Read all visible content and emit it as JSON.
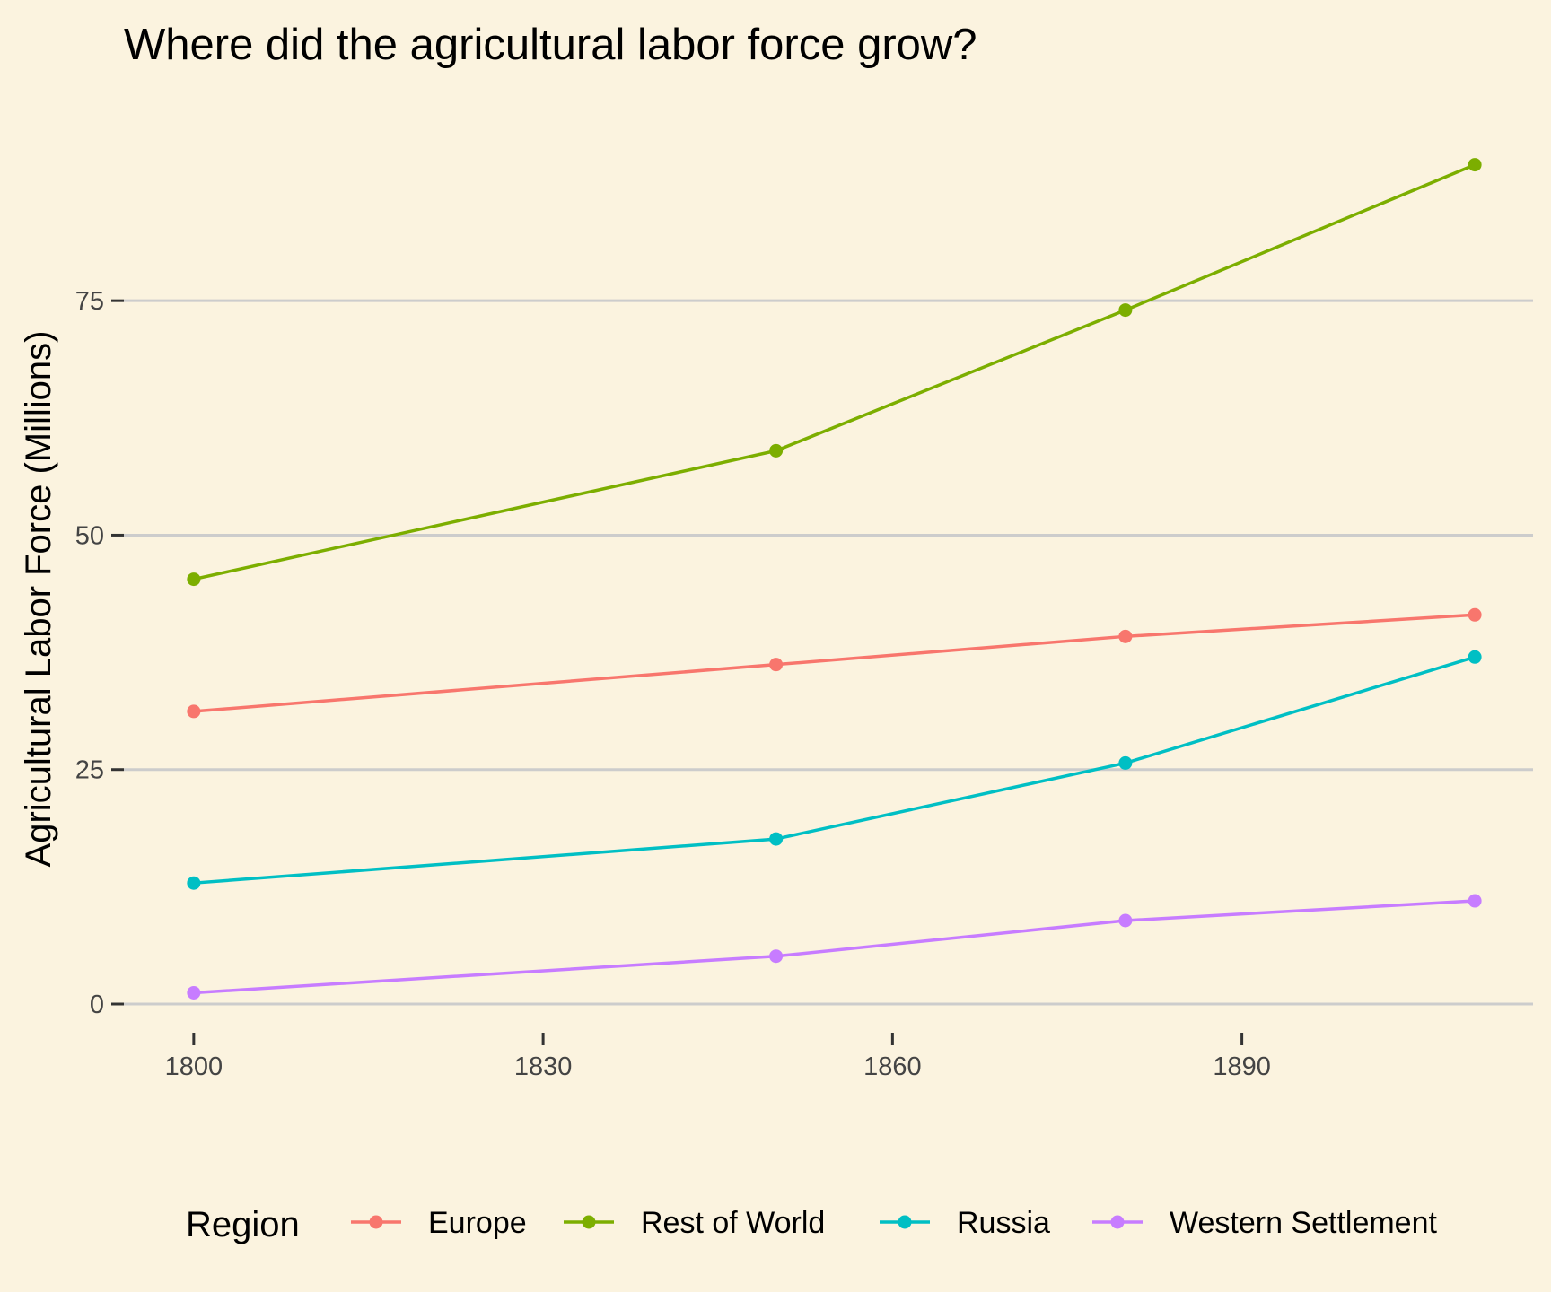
{
  "chart_data": {
    "type": "line",
    "title": "Where did the agricultural labor force grow?",
    "xlabel": "",
    "ylabel": "Agricultural Labor Force (Millions)",
    "x": [
      1800,
      1850,
      1880,
      1910
    ],
    "x_ticks": [
      1800,
      1830,
      1860,
      1890
    ],
    "y_ticks": [
      0,
      25,
      50,
      75
    ],
    "xlim": [
      1794,
      1915
    ],
    "ylim": [
      -4.4,
      97.5
    ],
    "grid": "horizontal major",
    "legend_title": "Region",
    "legend_position": "bottom",
    "series": [
      {
        "name": "Europe",
        "color": "#F8766D",
        "values": [
          31.2,
          36.2,
          39.2,
          41.5
        ]
      },
      {
        "name": "Rest of World",
        "color": "#7CAE00",
        "values": [
          45.3,
          59.0,
          74.0,
          89.5
        ]
      },
      {
        "name": "Russia",
        "color": "#00BFC4",
        "values": [
          12.9,
          17.6,
          25.7,
          37.0
        ]
      },
      {
        "name": "Western Settlement",
        "color": "#C77CFF",
        "values": [
          1.2,
          5.1,
          8.9,
          11.0
        ]
      }
    ]
  }
}
